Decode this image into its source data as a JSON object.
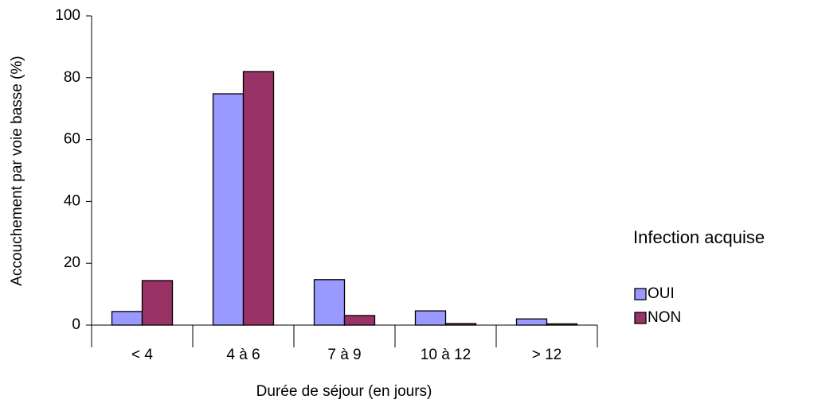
{
  "chart_data": {
    "type": "bar",
    "xlabel": "Durée de séjour (en jours)",
    "ylabel": "Accouchement par voie basse (%)",
    "legend_title": "Infection acquise",
    "legend_position": "right",
    "categories": [
      "< 4",
      "4 à 6",
      "7 à 9",
      "10 à 12",
      "> 12"
    ],
    "series": [
      {
        "name": "OUI",
        "color": "#9999ff",
        "values": [
          4.4,
          74.8,
          14.7,
          4.6,
          2
        ]
      },
      {
        "name": "NON",
        "color": "#993366",
        "values": [
          14.4,
          82,
          3.1,
          0.5,
          0.4
        ]
      }
    ],
    "ylim": [
      0,
      100
    ],
    "yticks": [
      0,
      20,
      40,
      60,
      80,
      100
    ],
    "grid": false
  }
}
